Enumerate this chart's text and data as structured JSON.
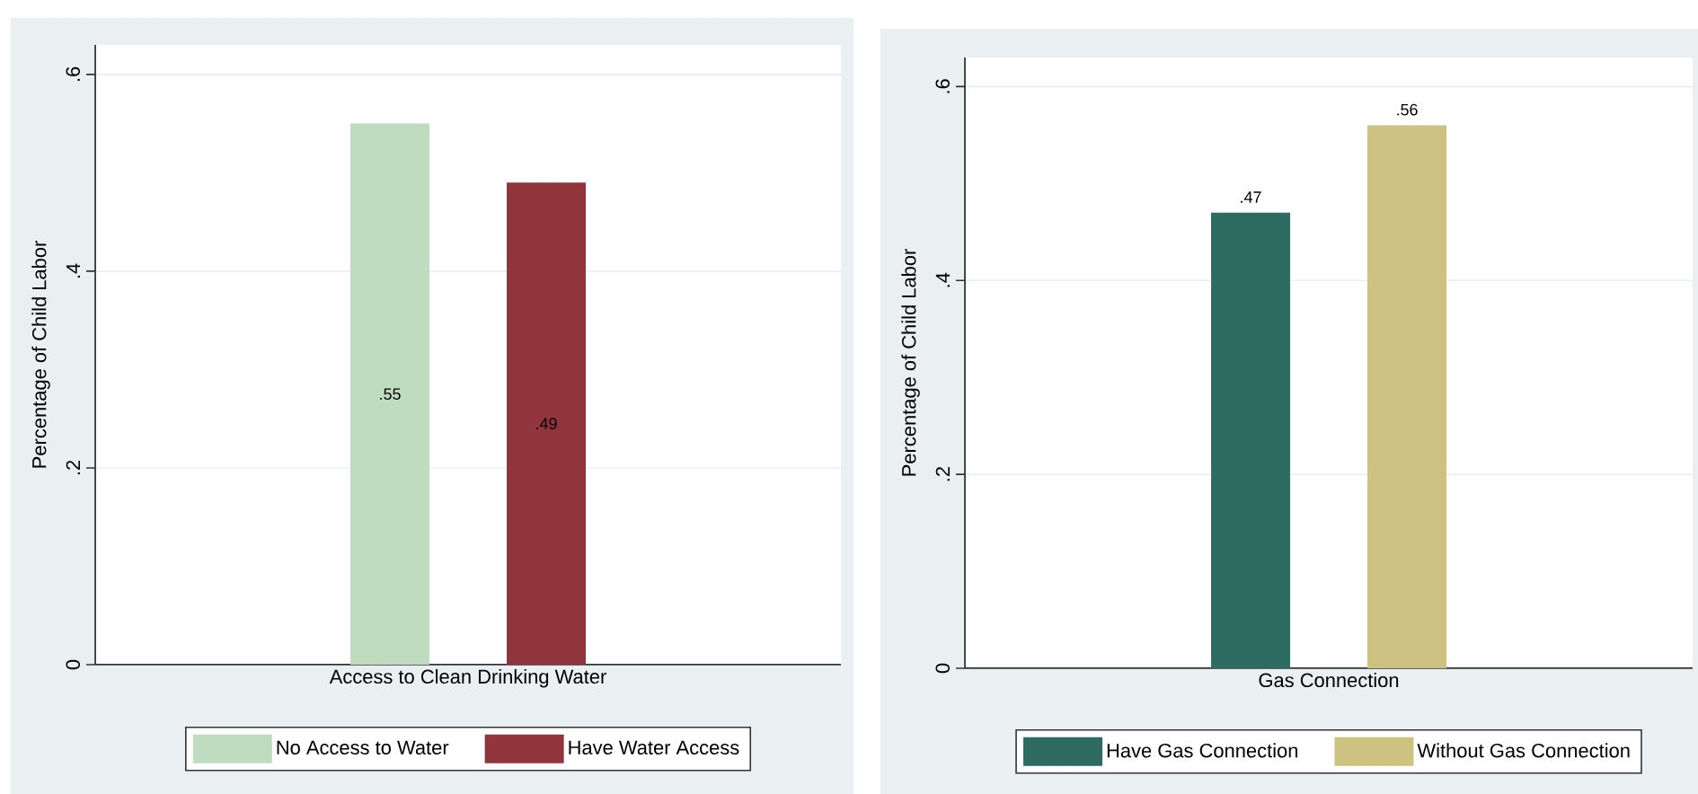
{
  "chart_data": [
    {
      "type": "bar",
      "categories": [
        null
      ],
      "xlabel": "Access to Clean Drinking Water",
      "ylabel": "Percentage of Child Labor",
      "ylim": [
        0,
        0.63
      ],
      "yticks": [
        0,
        {
          "value": 0.2,
          "label": ".2"
        },
        {
          "value": 0.4,
          "label": ".4"
        },
        {
          "value": 0.6,
          "label": ".6"
        }
      ],
      "grid": "y",
      "legend": "bottom",
      "series": [
        {
          "name": "No Access to Water",
          "color": "#c0dcc0",
          "values": [
            0.55
          ],
          "value_labels": [
            ".55"
          ]
        },
        {
          "name": "Have Water Access",
          "color": "#90353b",
          "values": [
            0.49
          ],
          "value_labels": [
            ".49"
          ]
        }
      ]
    },
    {
      "type": "bar",
      "categories": [
        null
      ],
      "xlabel": "Gas Connection",
      "ylabel": "Percentage of Child Labor",
      "ylim": [
        0,
        0.63
      ],
      "yticks": [
        0,
        {
          "value": 0.2,
          "label": ".2"
        },
        {
          "value": 0.4,
          "label": ".4"
        },
        {
          "value": 0.6,
          "label": ".6"
        }
      ],
      "grid": "y",
      "legend": "bottom",
      "series": [
        {
          "name": "Have Gas Connection",
          "color": "#2e6b63",
          "values": [
            0.47
          ],
          "value_labels": [
            ".47"
          ]
        },
        {
          "name": "Without Gas Connection",
          "color": "#cdc282",
          "values": [
            0.56
          ],
          "value_labels": [
            ".56"
          ]
        }
      ]
    }
  ]
}
